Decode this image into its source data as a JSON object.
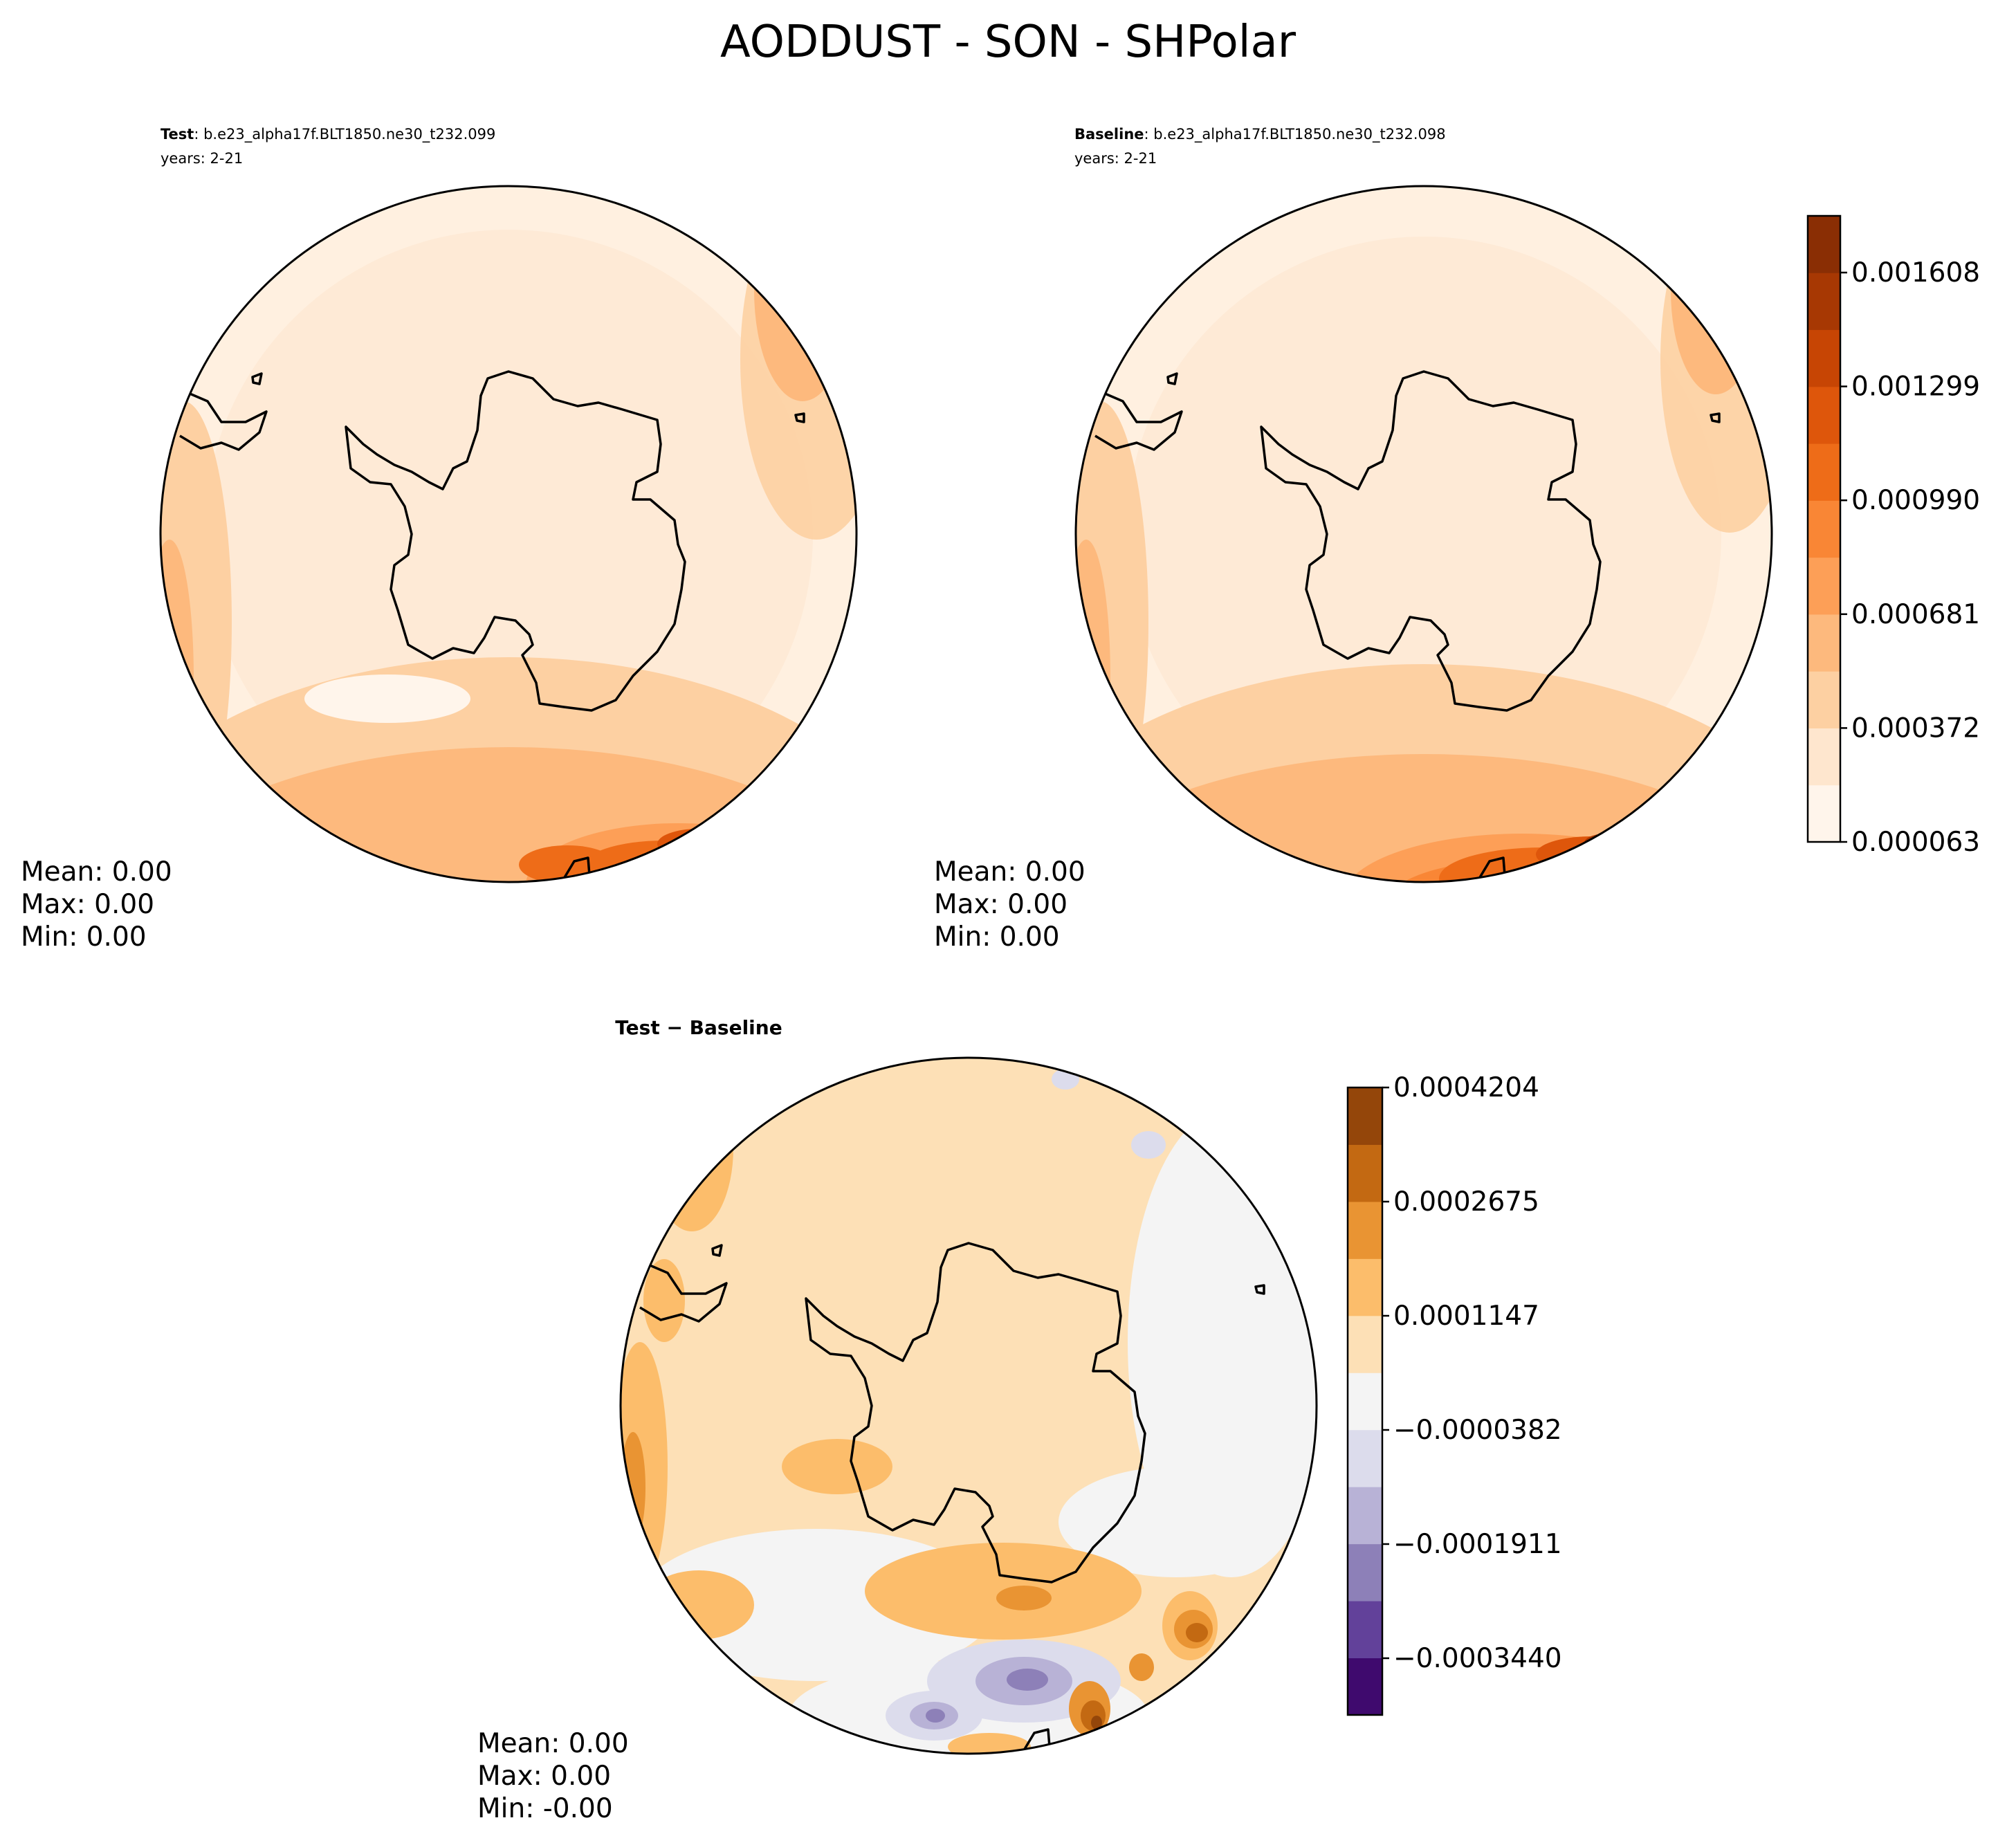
{
  "figure": {
    "title": "AODDUST - SON - SHPolar"
  },
  "panels": [
    {
      "id": "test",
      "title_bold": "Test",
      "title_rest": ": b.e23_alpha17f.BLT1850.ne30_t232.099",
      "years": "years: 2-21",
      "stats": {
        "mean": "Mean:  0.00",
        "max": "Max:  0.00",
        "min": "Min:  0.00"
      }
    },
    {
      "id": "baseline",
      "title_bold": "Baseline",
      "title_rest": ": b.e23_alpha17f.BLT1850.ne30_t232.098",
      "years": "years: 2-21",
      "stats": {
        "mean": "Mean:  0.00",
        "max": "Max:  0.00",
        "min": "Min:  0.00"
      }
    },
    {
      "id": "diff",
      "title_bold": "Test − Baseline",
      "stats": {
        "mean": "Mean:  0.00",
        "max": "Max:  0.00",
        "min": "Min: -0.00"
      }
    }
  ],
  "colorbars": {
    "main": {
      "ticks": [
        "0.000063",
        "0.000372",
        "0.000681",
        "0.000990",
        "0.001299",
        "0.001608"
      ],
      "colors": [
        "#fff5eb",
        "#fee6ce",
        "#fdd0a2",
        "#fdb97d",
        "#fd9f57",
        "#f98635",
        "#ee6c18",
        "#de560b",
        "#c74504",
        "#a73803",
        "#8a2e04"
      ]
    },
    "diff": {
      "ticks": [
        "−0.0003440",
        "−0.0001911",
        "−0.0000382",
        "0.0001147",
        "0.0002675",
        "0.0004204"
      ],
      "colors": [
        "#3f0a6e",
        "#62419a",
        "#8d80b8",
        "#b8b2d6",
        "#dcdcec",
        "#f4f4f4",
        "#fde0b6",
        "#fcbd6b",
        "#e99433",
        "#c36912",
        "#94460a"
      ]
    }
  },
  "chart_data": [
    {
      "type": "heatmap",
      "title": "Test : b.e23_alpha17f.BLT1850.ne30_t232.099",
      "projection": "south polar stereographic",
      "variable": "AODDUST",
      "season": "SON",
      "levels": [
        6.3e-05,
        0.000372,
        0.000681,
        0.00099,
        0.001299,
        0.001608
      ],
      "colorbar_ticks": [
        "0.000063",
        "0.000372",
        "0.000681",
        "0.000990",
        "0.001299",
        "0.001608"
      ],
      "mean": 0.0,
      "max": 0.0,
      "min": 0.0
    },
    {
      "type": "heatmap",
      "title": "Baseline : b.e23_alpha17f.BLT1850.ne30_t232.098",
      "projection": "south polar stereographic",
      "variable": "AODDUST",
      "season": "SON",
      "levels": [
        6.3e-05,
        0.000372,
        0.000681,
        0.00099,
        0.001299,
        0.001608
      ],
      "colorbar_ticks": [
        "0.000063",
        "0.000372",
        "0.000681",
        "0.000990",
        "0.001299",
        "0.001608"
      ],
      "mean": 0.0,
      "max": 0.0,
      "min": 0.0
    },
    {
      "type": "heatmap",
      "title": "Test − Baseline",
      "projection": "south polar stereographic",
      "levels": [
        -0.000344,
        -0.0001911,
        -3.82e-05,
        0.0001147,
        0.0002675,
        0.0004204
      ],
      "colorbar_ticks": [
        "−0.0003440",
        "−0.0001911",
        "−0.0000382",
        "0.0001147",
        "0.0002675",
        "0.0004204"
      ],
      "mean": 0.0,
      "max": 0.0,
      "min": -0.0
    }
  ]
}
